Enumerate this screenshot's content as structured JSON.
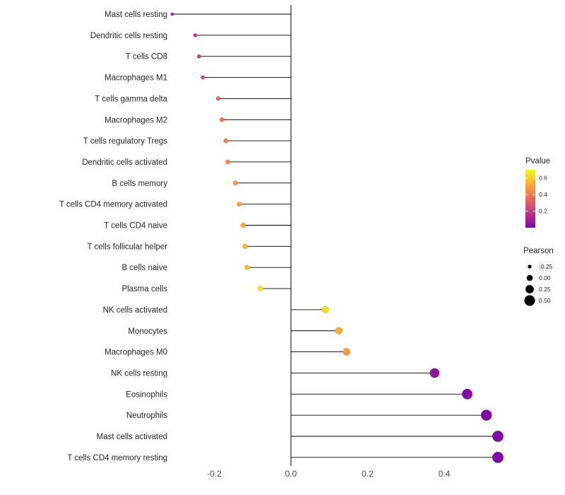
{
  "page": {
    "background": "#ffffff"
  },
  "chart_data": {
    "type": "lollipop",
    "title": "",
    "xlabel": "",
    "ylabel": "",
    "orientation": "horizontal",
    "baseline": 0,
    "grid": false,
    "x_axis": {
      "range": [
        -0.35,
        0.58
      ],
      "ticks": [
        {
          "value": -0.2,
          "label": "-0.2"
        },
        {
          "value": 0.0,
          "label": "0.0"
        },
        {
          "value": 0.2,
          "label": "0.2"
        },
        {
          "value": 0.4,
          "label": "0.4"
        }
      ]
    },
    "points": [
      {
        "label": "Mast cells resting",
        "pearson": -0.31,
        "pvalue": 0.12
      },
      {
        "label": "Dendritic cells resting",
        "pearson": -0.25,
        "pvalue": 0.2
      },
      {
        "label": "T cells CD8",
        "pearson": -0.24,
        "pvalue": 0.23
      },
      {
        "label": "Macrophages M1",
        "pearson": -0.23,
        "pvalue": 0.26
      },
      {
        "label": "T cells gamma delta",
        "pearson": -0.19,
        "pvalue": 0.34
      },
      {
        "label": "Macrophages M2",
        "pearson": -0.18,
        "pvalue": 0.37
      },
      {
        "label": "T cells regulatory  Tregs",
        "pearson": -0.17,
        "pvalue": 0.41
      },
      {
        "label": "Dendritic cells activated",
        "pearson": -0.165,
        "pvalue": 0.43
      },
      {
        "label": "B cells memory",
        "pearson": -0.145,
        "pvalue": 0.47
      },
      {
        "label": "T cells CD4 memory activated",
        "pearson": -0.135,
        "pvalue": 0.5
      },
      {
        "label": "T cells CD4 naive",
        "pearson": -0.125,
        "pvalue": 0.53
      },
      {
        "label": "T cells follicular helper",
        "pearson": -0.12,
        "pvalue": 0.55
      },
      {
        "label": "B cells naive",
        "pearson": -0.115,
        "pvalue": 0.56
      },
      {
        "label": "Plasma cells",
        "pearson": -0.08,
        "pvalue": 0.66
      },
      {
        "label": "NK cells activated",
        "pearson": 0.09,
        "pvalue": 0.64
      },
      {
        "label": "Monocytes",
        "pearson": 0.125,
        "pvalue": 0.54
      },
      {
        "label": "Macrophages M0",
        "pearson": 0.145,
        "pvalue": 0.48
      },
      {
        "label": "NK cells resting",
        "pearson": 0.375,
        "pvalue": 0.06
      },
      {
        "label": "Eosinophils",
        "pearson": 0.46,
        "pvalue": 0.02
      },
      {
        "label": "Neutrophils",
        "pearson": 0.51,
        "pvalue": 0.012
      },
      {
        "label": "Mast cells activated",
        "pearson": 0.54,
        "pvalue": 0.008
      },
      {
        "label": "T cells CD4 memory resting",
        "pearson": 0.54,
        "pvalue": 0.008
      }
    ],
    "legends": {
      "pvalue": {
        "title": "Pvalue",
        "range": [
          0,
          0.7
        ],
        "ticks": [
          {
            "value": 0.6,
            "label": "0.6"
          },
          {
            "value": 0.4,
            "label": "0.4"
          },
          {
            "value": 0.2,
            "label": "0.2"
          }
        ]
      },
      "pearson": {
        "title": "Pearson",
        "items": [
          {
            "value": -0.25,
            "label": "-0.25"
          },
          {
            "value": 0.0,
            "label": "0.00"
          },
          {
            "value": 0.25,
            "label": "0.25"
          },
          {
            "value": 0.5,
            "label": "0.50"
          }
        ]
      }
    },
    "colors": {
      "stem": "#000000",
      "baseline_line": "#000000",
      "axis_tick_text": "#4d4d4d",
      "category_text": "#262626",
      "legend_text": "#262626",
      "legend_dot": "#000000",
      "colorbar_tick": "#ffffff",
      "plasma_stops": [
        "#0d0887",
        "#41049d",
        "#6a00a8",
        "#8f0da4",
        "#b12a90",
        "#cc4778",
        "#e16462",
        "#f2844b",
        "#fca636",
        "#fcce25",
        "#f0f921"
      ]
    }
  }
}
